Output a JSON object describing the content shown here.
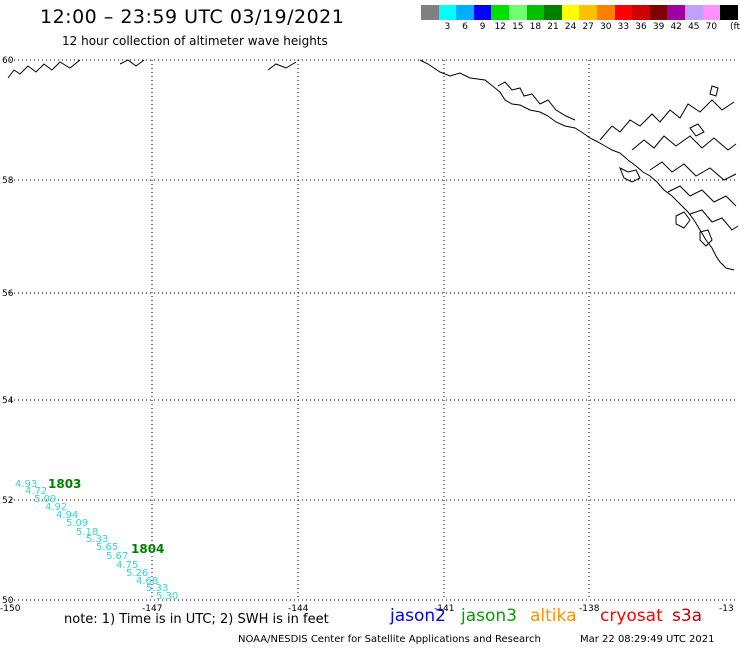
{
  "header": {
    "title": "12:00 – 23:59 UTC 03/19/2021",
    "subtitle": "12 hour collection of altimeter wave heights"
  },
  "legend": {
    "unit": "(ft)",
    "swatches": [
      {
        "color": "#808080",
        "label": ""
      },
      {
        "color": "#00ffff",
        "label": "3"
      },
      {
        "color": "#00b0ff",
        "label": "6"
      },
      {
        "color": "#0000ff",
        "label": "9"
      },
      {
        "color": "#00e000",
        "label": "12"
      },
      {
        "color": "#70ff70",
        "label": "15"
      },
      {
        "color": "#00c000",
        "label": "18"
      },
      {
        "color": "#008000",
        "label": "21"
      },
      {
        "color": "#ffff00",
        "label": "24"
      },
      {
        "color": "#ffc000",
        "label": "27"
      },
      {
        "color": "#ff8000",
        "label": "30"
      },
      {
        "color": "#ff0000",
        "label": "33"
      },
      {
        "color": "#d00000",
        "label": "36"
      },
      {
        "color": "#800000",
        "label": "39"
      },
      {
        "color": "#a000a0",
        "label": "42"
      },
      {
        "color": "#c0a0ff",
        "label": "45"
      },
      {
        "color": "#ff90ff",
        "label": "70"
      },
      {
        "color": "#000000",
        "label": ""
      }
    ]
  },
  "map": {
    "lat_labels": [
      "60",
      "58",
      "56",
      "54",
      "52",
      "50"
    ],
    "lon_labels": [
      "-150",
      "-147",
      "-144",
      "-141",
      "-138",
      "-13"
    ],
    "pass_labels": [
      {
        "text": "1803",
        "color": "#008000"
      },
      {
        "text": "1804",
        "color": "#008000"
      }
    ],
    "swh_color": "#30d8d0",
    "swh_values": [
      "4.93",
      "4.72",
      "5.09",
      "4.92",
      "4.94",
      "5.09",
      "5.18",
      "5.33",
      "5.65",
      "5.67",
      "4.75",
      "5.26",
      "4.68",
      "5.33",
      "5.30"
    ]
  },
  "footer": {
    "note": "note:  1) Time is in UTC;  2) SWH is in feet",
    "satellites": [
      {
        "name": "jason2",
        "color": "#0000ff"
      },
      {
        "name": "jason3",
        "color": "#00a000"
      },
      {
        "name": "altika",
        "color": "#ff9000"
      },
      {
        "name": "cryosat",
        "color": "#ff0000"
      },
      {
        "name": "s3a",
        "color": "#c00000"
      }
    ],
    "credit": "NOAA/NESDIS Center for Satellite Applications and Research",
    "timestamp": "Mar 22 08:29:49 UTC 2021"
  }
}
